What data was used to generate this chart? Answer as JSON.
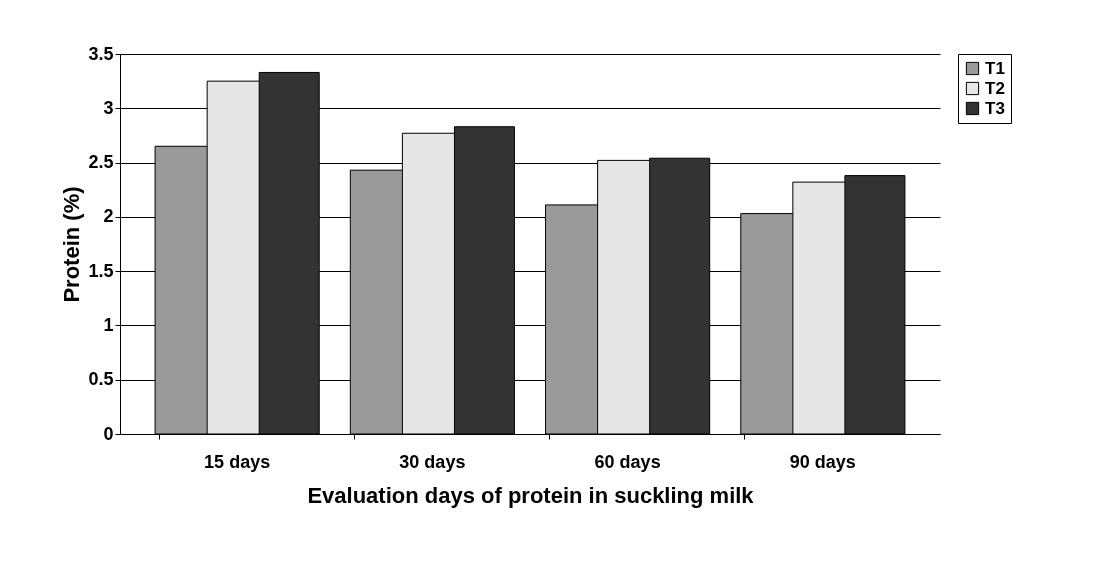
{
  "chart_data": {
    "type": "bar",
    "xlabel": "Evaluation  days of protein in suckling milk",
    "ylabel": "Protein  (%)",
    "categories": [
      "15 days",
      "30 days",
      "60 days",
      "90 days"
    ],
    "series": [
      {
        "name": "T1",
        "color": "#9a9a9a",
        "values": [
          2.65,
          2.43,
          2.11,
          2.03
        ]
      },
      {
        "name": "T2",
        "color": "#e6e6e6",
        "values": [
          3.25,
          2.77,
          2.52,
          2.32
        ]
      },
      {
        "name": "T3",
        "color": "#333333",
        "values": [
          3.33,
          2.83,
          2.54,
          2.38
        ]
      }
    ],
    "ylim": [
      0,
      3.5
    ],
    "yticks": [
      0,
      0.5,
      1,
      1.5,
      2,
      2.5,
      3,
      3.5
    ],
    "grid": "y",
    "legend": "right"
  }
}
